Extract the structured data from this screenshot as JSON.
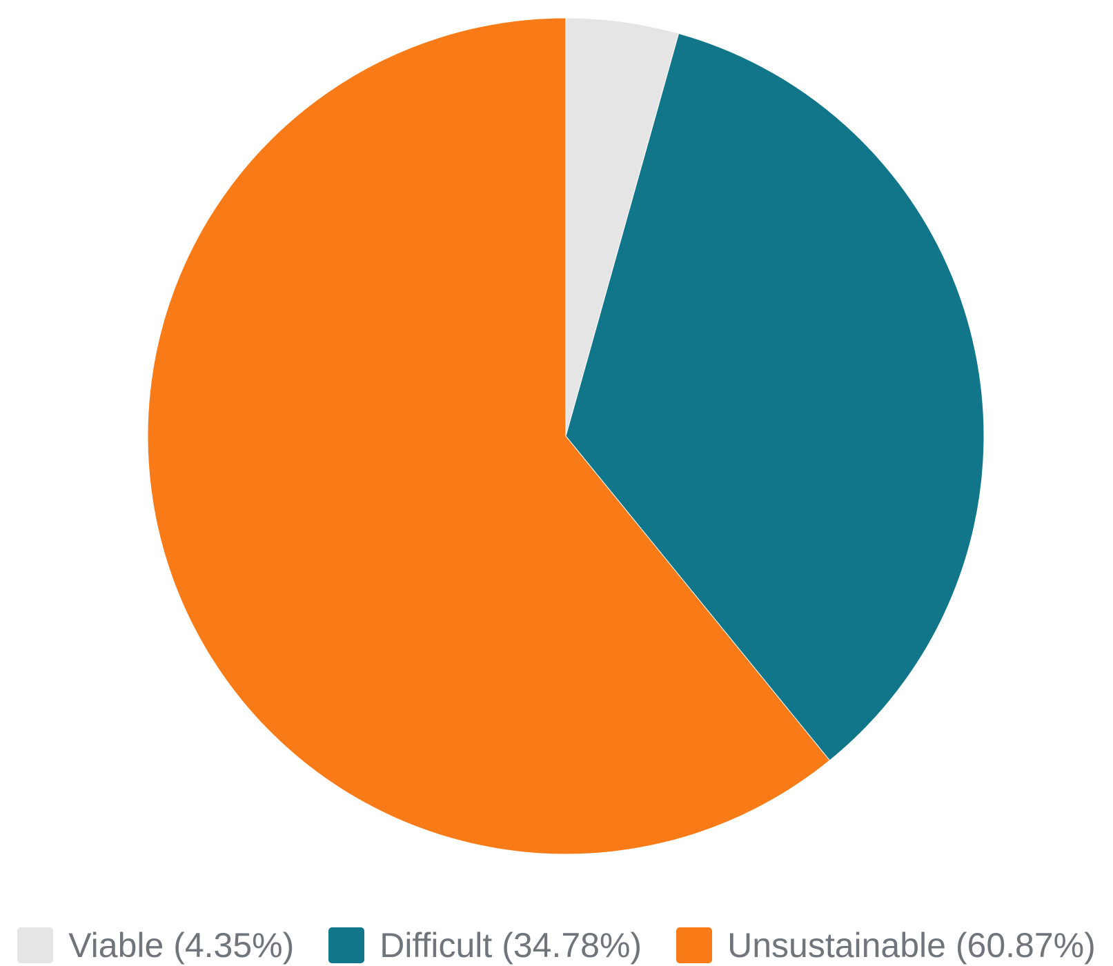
{
  "chart_data": {
    "type": "pie",
    "title": "",
    "slices": [
      {
        "label": "Viable (4.35%)",
        "value": 4.35,
        "color": "#e5e5e5"
      },
      {
        "label": "Difficult (34.78%)",
        "value": 34.78,
        "color": "#11768a"
      },
      {
        "label": "Unsustainable (60.87%)",
        "value": 60.87,
        "color": "#f87b18"
      }
    ],
    "start_angle": "12 o'clock",
    "direction": "clockwise",
    "legend_position": "bottom-center"
  }
}
